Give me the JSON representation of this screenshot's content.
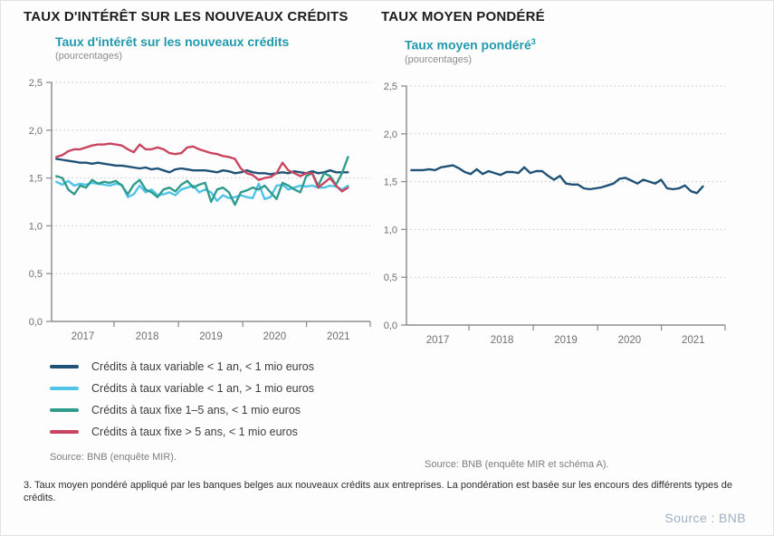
{
  "page": {
    "title_left": "TAUX D'INTÉRÊT SUR LES NOUVEAUX CRÉDITS",
    "title_right": "TAUX MOYEN PONDÉRÉ",
    "footnote": "3. Taux moyen pondéré appliqué par les banques belges aux nouveaux crédits aux entreprises. La pondération est basée sur les encours des différents types de crédits.",
    "bottom_source": "Source : BNB"
  },
  "colors": {
    "accent_teal": "#2099ad",
    "navy": "#1f5276",
    "light_blue": "#4fc3e8",
    "teal_green": "#2f9c8e",
    "red": "#c9455f",
    "axis_gray": "#8f8f8f",
    "grid_gray": "#c4c4c4"
  },
  "chart_data": [
    {
      "id": "credit-rates",
      "type": "line",
      "title": "Taux d'intérêt sur les nouveaux crédits",
      "unit_label": "(pourcentages)",
      "source": "Source: BNB (enquête MIR).",
      "ylim": [
        0,
        2.5
      ],
      "ytick_labels": [
        "0,0",
        "0,5",
        "1,0",
        "1,5",
        "2,0",
        "2,5"
      ],
      "xticklabels": [
        "2017",
        "2018",
        "2019",
        "2020",
        "2021"
      ],
      "x_range_note": "monthly, 2017 to early 2021",
      "grid": "dotted-horizontal",
      "legend_position": "below",
      "series": [
        {
          "name": "Crédits à taux variable < 1 an, < 1 mio euros",
          "color": "#1f5276",
          "values": [
            1.7,
            1.69,
            1.68,
            1.67,
            1.66,
            1.66,
            1.65,
            1.66,
            1.65,
            1.64,
            1.63,
            1.63,
            1.62,
            1.61,
            1.6,
            1.61,
            1.59,
            1.6,
            1.58,
            1.56,
            1.59,
            1.6,
            1.59,
            1.58,
            1.58,
            1.58,
            1.57,
            1.56,
            1.58,
            1.57,
            1.55,
            1.56,
            1.58,
            1.56,
            1.55,
            1.55,
            1.54,
            1.55,
            1.56,
            1.55,
            1.57,
            1.56,
            1.55,
            1.57,
            1.55,
            1.56,
            1.58,
            1.56,
            1.56,
            1.56
          ]
        },
        {
          "name": "Crédits à taux variable < 1 an, > 1 mio euros",
          "color": "#4fc3e8",
          "values": [
            1.46,
            1.43,
            1.47,
            1.42,
            1.44,
            1.43,
            1.45,
            1.44,
            1.43,
            1.42,
            1.44,
            1.43,
            1.3,
            1.33,
            1.42,
            1.35,
            1.38,
            1.32,
            1.33,
            1.35,
            1.32,
            1.38,
            1.4,
            1.42,
            1.35,
            1.38,
            1.35,
            1.26,
            1.32,
            1.29,
            1.3,
            1.32,
            1.3,
            1.29,
            1.44,
            1.28,
            1.3,
            1.42,
            1.43,
            1.38,
            1.4,
            1.42,
            1.41,
            1.42,
            1.4,
            1.4,
            1.42,
            1.41,
            1.38,
            1.42
          ]
        },
        {
          "name": "Crédits à taux fixe 1–5 ans, < 1 mio euros",
          "color": "#2f9c8e",
          "values": [
            1.52,
            1.5,
            1.38,
            1.33,
            1.42,
            1.4,
            1.48,
            1.44,
            1.46,
            1.45,
            1.47,
            1.42,
            1.33,
            1.43,
            1.48,
            1.38,
            1.35,
            1.3,
            1.38,
            1.4,
            1.36,
            1.43,
            1.47,
            1.4,
            1.43,
            1.45,
            1.25,
            1.38,
            1.4,
            1.35,
            1.22,
            1.35,
            1.37,
            1.4,
            1.38,
            1.42,
            1.35,
            1.28,
            1.45,
            1.42,
            1.38,
            1.35,
            1.52,
            1.55,
            1.42,
            1.55,
            1.52,
            1.43,
            1.55,
            1.72
          ]
        },
        {
          "name": "Crédits à taux fixe > 5 ans, < 1 mio euros",
          "color": "#c9455f",
          "values": [
            1.72,
            1.74,
            1.78,
            1.8,
            1.8,
            1.82,
            1.84,
            1.85,
            1.85,
            1.86,
            1.85,
            1.84,
            1.8,
            1.77,
            1.85,
            1.8,
            1.8,
            1.82,
            1.8,
            1.76,
            1.75,
            1.76,
            1.82,
            1.83,
            1.8,
            1.78,
            1.76,
            1.75,
            1.73,
            1.72,
            1.7,
            1.6,
            1.55,
            1.53,
            1.48,
            1.5,
            1.51,
            1.55,
            1.66,
            1.58,
            1.55,
            1.52,
            1.55,
            1.55,
            1.4,
            1.45,
            1.5,
            1.42,
            1.36,
            1.4
          ]
        }
      ]
    },
    {
      "id": "weighted-average-rate",
      "type": "line",
      "title": "Taux moyen pondéré",
      "title_sup": "3",
      "unit_label": "(pourcentages)",
      "source": "Source: BNB (enquête MIR et schéma A).",
      "ylim": [
        0,
        2.5
      ],
      "ytick_labels": [
        "0,0",
        "0,5",
        "1,0",
        "1,5",
        "2,0",
        "2,5"
      ],
      "xticklabels": [
        "2017",
        "2018",
        "2019",
        "2020",
        "2021"
      ],
      "x_range_note": "monthly, 2017 to early 2021",
      "grid": "dotted-horizontal",
      "legend_position": "none",
      "series": [
        {
          "name": "Taux moyen pondéré",
          "color": "#1f5276",
          "values": [
            1.62,
            1.62,
            1.62,
            1.63,
            1.62,
            1.65,
            1.66,
            1.67,
            1.64,
            1.6,
            1.58,
            1.63,
            1.58,
            1.61,
            1.59,
            1.57,
            1.6,
            1.6,
            1.59,
            1.65,
            1.59,
            1.61,
            1.61,
            1.56,
            1.52,
            1.56,
            1.48,
            1.47,
            1.47,
            1.43,
            1.42,
            1.43,
            1.44,
            1.46,
            1.48,
            1.53,
            1.54,
            1.51,
            1.48,
            1.52,
            1.5,
            1.48,
            1.52,
            1.43,
            1.42,
            1.43,
            1.46,
            1.4,
            1.38,
            1.45
          ]
        }
      ]
    }
  ]
}
